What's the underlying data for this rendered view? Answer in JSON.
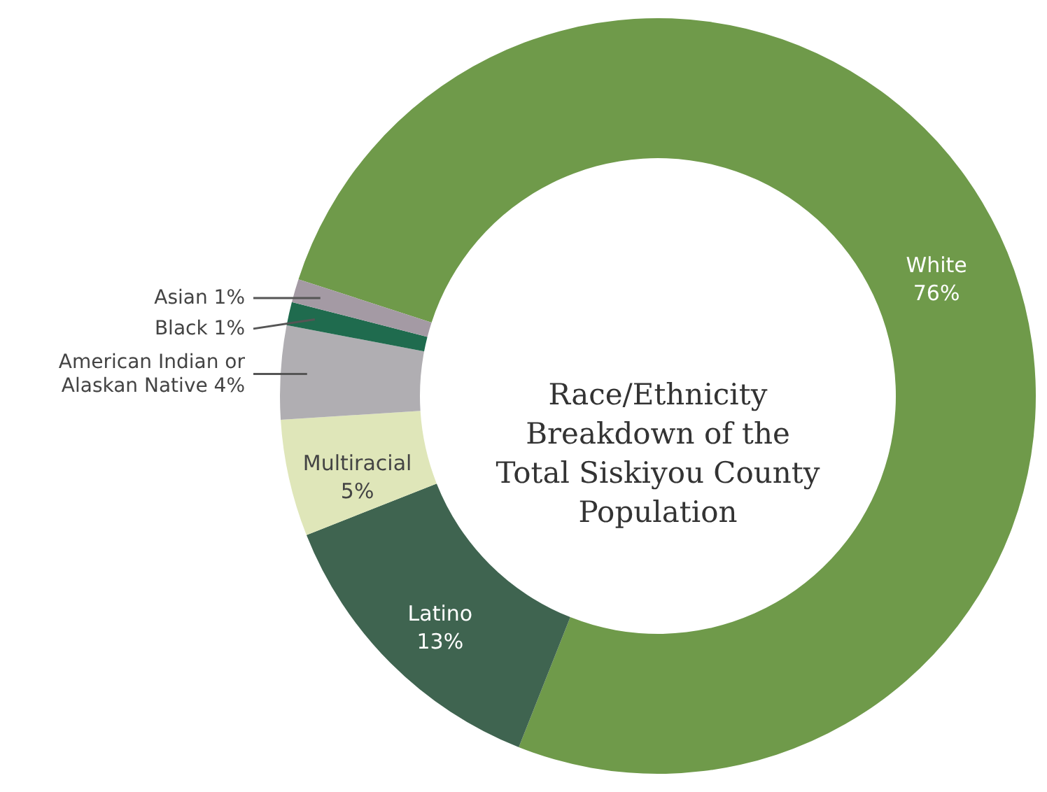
{
  "chart_data": {
    "type": "donut",
    "title": "Race/Ethnicity Breakdown of the Total Siskiyou County Population",
    "categories": [
      "White",
      "Latino",
      "Multiracial",
      "American Indian or Alaskan Native",
      "Black",
      "Asian"
    ],
    "values": [
      76,
      13,
      5,
      4,
      1,
      1
    ],
    "value_labels": [
      "76%",
      "13%",
      "5%",
      "4%",
      "1%",
      "1%"
    ],
    "colors": [
      "#6f9a4a",
      "#3f6450",
      "#dfe6b9",
      "#b0aeb2",
      "#1f6b4e",
      "#a49aa4"
    ]
  }
}
